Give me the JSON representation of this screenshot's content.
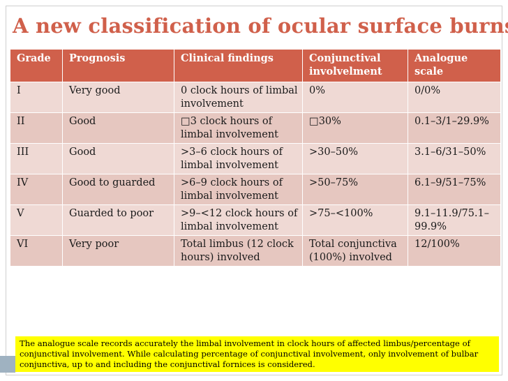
{
  "slide": {
    "title": "A new classification of ocular surface burns"
  },
  "table": {
    "headers": {
      "grade": "Grade",
      "prognosis": "Prognosis",
      "clinical": "Clinical findings",
      "conjunctival": "Conjunctival involvelment",
      "analogue": "Analogue scale"
    },
    "rows": [
      {
        "grade": "I",
        "prognosis": "Very good",
        "clinical": "0 clock hours of limbal involvement",
        "conjunctival": "0%",
        "analogue": "0/0%"
      },
      {
        "grade": "II",
        "prognosis": "Good",
        "clinical": "□3 clock hours of limbal involvement",
        "conjunctival": "□30%",
        "analogue": "0.1–3/1–29.9%"
      },
      {
        "grade": "III",
        "prognosis": "Good",
        "clinical": ">3–6 clock hours of limbal involvement",
        "conjunctival": ">30–50%",
        "analogue": "3.1–6/31–50%"
      },
      {
        "grade": "IV",
        "prognosis": "Good to guarded",
        "clinical": ">6–9 clock hours of limbal involvement",
        "conjunctival": ">50–75%",
        "analogue": "6.1–9/51–75%"
      },
      {
        "grade": "V",
        "prognosis": "Guarded to poor",
        "clinical": ">9–<12 clock hours of limbal involvement",
        "conjunctival": ">75–<100%",
        "analogue": "9.1–11.9/75.1–99.9%"
      },
      {
        "grade": "VI",
        "prognosis": "Very poor",
        "clinical": "Total limbus (12 clock hours) involved",
        "conjunctival": "Total conjunctiva (100%) involved",
        "analogue": "12/100%"
      }
    ]
  },
  "note": {
    "text": "The analogue scale records accurately the limbal involvement in clock hours of affected limbus/percentage of conjunctival involvement. While calculating percentage of conjunctival involvement, only involvement of bulbar conjunctiva, up to and including the conjunctival fornices is considered."
  },
  "colors": {
    "accent": "#d0604b",
    "row_light": "#efd9d4",
    "row_dark": "#e6c7c0",
    "note_highlight": "#ffff00"
  }
}
